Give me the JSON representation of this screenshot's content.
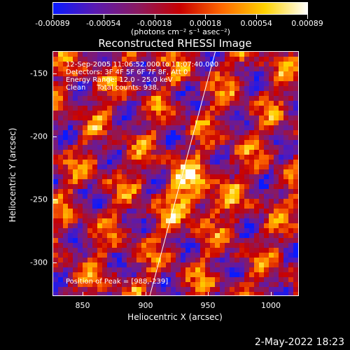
{
  "colorbar": {
    "tick_labels": [
      "-0.00089",
      "-0.00054",
      "-0.00018",
      "0.00018",
      "0.00054",
      "0.00089"
    ],
    "units": "(photons cm⁻² s⁻¹ asec⁻²)",
    "colors": [
      "#0a1aff",
      "#5a1ab0",
      "#8a1a60",
      "#c80000",
      "#ff6a00",
      "#ffd200",
      "#ffffff"
    ]
  },
  "title": "Reconstructed RHESSI Image",
  "annotations": {
    "line1": "12-Sep-2005 11:06:52.000 to 11:07:40.000",
    "line2": "Detectors: 3F 4F 5F 6F 7F 8F, Att 0",
    "line3": "Energy Range: 12.0 - 25.0 keV",
    "line4": "Clean     Total counts: 938.",
    "peak": "Position of Peak = [988,-239]"
  },
  "axes": {
    "xlabel": "Heliocentric X (arcsec)",
    "ylabel": "Heliocentric Y (arcsec)",
    "xticks": [
      "850",
      "900",
      "950",
      "1000"
    ],
    "yticks": [
      "-150",
      "-200",
      "-250",
      "-300"
    ]
  },
  "footer": {
    "timestamp": "2-May-2022 18:23"
  },
  "chart_data": {
    "type": "heatmap",
    "title": "Reconstructed RHESSI Image",
    "xlabel": "Heliocentric X (arcsec)",
    "ylabel": "Heliocentric Y (arcsec)",
    "xlim": [
      827,
      1022
    ],
    "ylim": [
      -325,
      -130
    ],
    "value_range": [
      -0.00089,
      0.00089
    ],
    "peak": {
      "x": 988,
      "y": -239
    },
    "limb_line": {
      "x_top": 956,
      "y_top": -130,
      "x_bottom": 904,
      "y_bottom": -325
    }
  }
}
